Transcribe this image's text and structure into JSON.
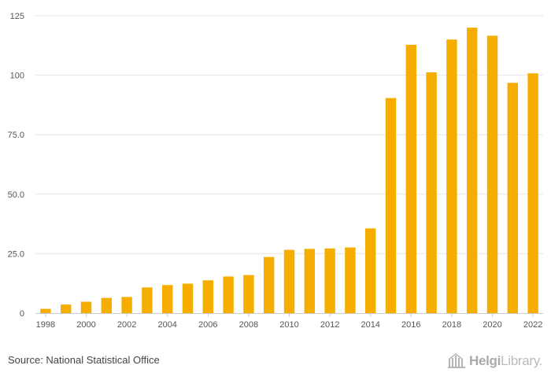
{
  "chart_data": {
    "type": "bar",
    "categories": [
      "1998",
      "1999",
      "2000",
      "2001",
      "2002",
      "2003",
      "2004",
      "2005",
      "2006",
      "2007",
      "2008",
      "2009",
      "2010",
      "2011",
      "2012",
      "2013",
      "2014",
      "2015",
      "2016",
      "2017",
      "2018",
      "2019",
      "2020",
      "2021",
      "2022"
    ],
    "values": [
      1.8,
      3.6,
      4.8,
      6.4,
      6.8,
      10.8,
      11.8,
      12.4,
      13.8,
      15.4,
      16.0,
      23.6,
      26.6,
      27.0,
      27.2,
      27.6,
      35.6,
      90.4,
      112.8,
      101.2,
      115.0,
      120.0,
      116.6,
      96.8,
      100.8
    ],
    "ylim": [
      0,
      125
    ],
    "yticks": [
      0,
      25.0,
      50.0,
      75.0,
      100,
      125
    ],
    "ytick_labels": [
      "0",
      "25.0",
      "50.0",
      "75.0",
      "100",
      "125"
    ],
    "xtick_labels": [
      "1998",
      "2000",
      "2002",
      "2004",
      "2006",
      "2008",
      "2010",
      "2012",
      "2014",
      "2016",
      "2018",
      "2020",
      "2022"
    ],
    "grid": true,
    "bar_color": "#f5ae00",
    "grid_color": "#e6e6e6",
    "axis_color": "#cccccc"
  },
  "footer": {
    "source": "Source: National Statistical Office",
    "brand_bold": "Helgi",
    "brand_light": "Library."
  }
}
